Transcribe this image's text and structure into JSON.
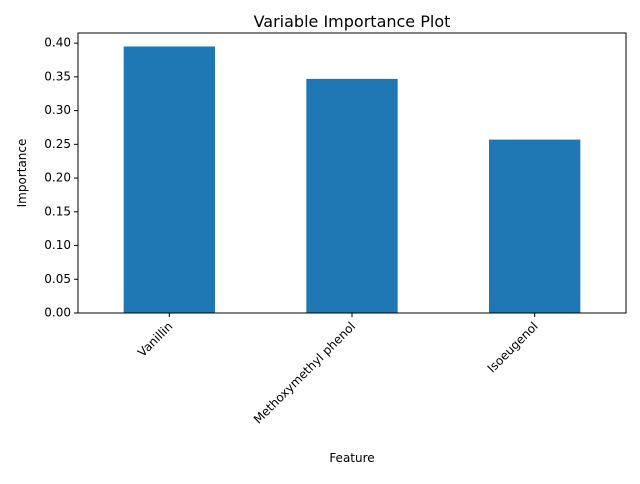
{
  "chart_data": {
    "type": "bar",
    "title": "Variable Importance Plot",
    "xlabel": "Feature",
    "ylabel": "Importance",
    "categories": [
      "Vanillin",
      "Methoxymethyl phenol",
      "Isoeugenol"
    ],
    "values": [
      0.395,
      0.347,
      0.257
    ],
    "ylim": [
      0,
      0.415
    ],
    "yticks": [
      "0.00",
      "0.05",
      "0.10",
      "0.15",
      "0.20",
      "0.25",
      "0.30",
      "0.35",
      "0.40"
    ],
    "bar_color": "#1f77b4",
    "grid": false,
    "legend": "none"
  }
}
